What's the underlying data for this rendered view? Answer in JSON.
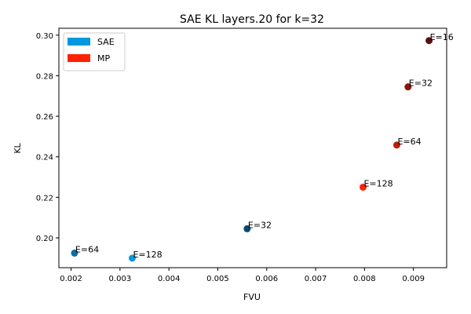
{
  "chart_data": {
    "type": "scatter",
    "title": "SAE KL layers.20 for k=32",
    "xlabel": "FVU",
    "ylabel": "KL",
    "xlim": [
      0.00175,
      0.00968
    ],
    "ylim": [
      0.1853,
      0.3034
    ],
    "xticks": [
      0.002,
      0.003,
      0.004,
      0.005,
      0.006,
      0.007,
      0.008,
      0.009
    ],
    "yticks": [
      0.2,
      0.22,
      0.24,
      0.26,
      0.28,
      0.3
    ],
    "xtick_labels": [
      "0.002",
      "0.003",
      "0.004",
      "0.005",
      "0.006",
      "0.007",
      "0.008",
      "0.009"
    ],
    "ytick_labels": [
      "0.20",
      "0.22",
      "0.24",
      "0.26",
      "0.28",
      "0.30"
    ],
    "grid": false,
    "legend": {
      "placement": "top-left",
      "entries": [
        {
          "name": "SAE",
          "color": "#0099dd"
        },
        {
          "name": "MP",
          "color": "#ff2200"
        }
      ]
    },
    "series": [
      {
        "name": "SAE",
        "points": [
          {
            "x": 0.00207,
            "y": 0.1925,
            "label": "E=64",
            "color": "#0a6e9e"
          },
          {
            "x": 0.00325,
            "y": 0.19,
            "label": "E=128",
            "color": "#0a99dd"
          },
          {
            "x": 0.0056,
            "y": 0.2045,
            "label": "E=32",
            "color": "#0a4c6e"
          }
        ]
      },
      {
        "name": "MP",
        "points": [
          {
            "x": 0.00932,
            "y": 0.2973,
            "label": "E=16",
            "color": "#5a1010"
          },
          {
            "x": 0.00889,
            "y": 0.2745,
            "label": "E=32",
            "color": "#8a1508"
          },
          {
            "x": 0.00866,
            "y": 0.2458,
            "label": "E=64",
            "color": "#c01e05"
          },
          {
            "x": 0.00797,
            "y": 0.225,
            "label": "E=128",
            "color": "#ff2200"
          }
        ]
      }
    ]
  }
}
